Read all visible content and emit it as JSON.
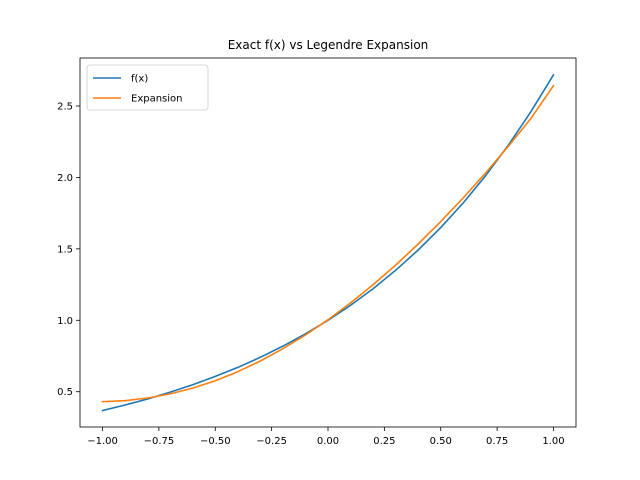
{
  "chart_data": {
    "type": "line",
    "title": "Exact f(x) vs Legendre Expansion",
    "xlabel": "",
    "ylabel": "",
    "xlim": [
      -1.1,
      1.1
    ],
    "ylim": [
      0.253,
      2.836
    ],
    "xticks": [
      -1.0,
      -0.75,
      -0.5,
      -0.25,
      0.0,
      0.25,
      0.5,
      0.75,
      1.0
    ],
    "xtick_labels": [
      "−1.00",
      "−0.75",
      "−0.50",
      "−0.25",
      "0.00",
      "0.25",
      "0.50",
      "0.75",
      "1.00"
    ],
    "yticks": [
      0.5,
      1.0,
      1.5,
      2.0,
      2.5
    ],
    "ytick_labels": [
      "0.5",
      "1.0",
      "1.5",
      "2.0",
      "2.5"
    ],
    "grid": false,
    "legend_position": "upper-left",
    "series": [
      {
        "name": "f(x)",
        "color": "#1f77b4",
        "x": [
          -1.0,
          -0.9,
          -0.8,
          -0.7,
          -0.6,
          -0.5,
          -0.4,
          -0.3,
          -0.2,
          -0.1,
          0.0,
          0.1,
          0.2,
          0.3,
          0.4,
          0.5,
          0.6,
          0.7,
          0.8,
          0.9,
          1.0
        ],
        "y": [
          0.368,
          0.407,
          0.449,
          0.497,
          0.549,
          0.607,
          0.67,
          0.741,
          0.819,
          0.905,
          1.0,
          1.105,
          1.221,
          1.35,
          1.492,
          1.649,
          1.822,
          2.014,
          2.226,
          2.46,
          2.718
        ]
      },
      {
        "name": "Expansion",
        "color": "#ff7f0e",
        "x": [
          -1.0,
          -0.9,
          -0.8,
          -0.7,
          -0.6,
          -0.5,
          -0.4,
          -0.3,
          -0.2,
          -0.1,
          0.0,
          0.1,
          0.2,
          0.3,
          0.4,
          0.5,
          0.6,
          0.7,
          0.8,
          0.9,
          1.0
        ],
        "y": [
          0.43,
          0.437,
          0.456,
          0.485,
          0.525,
          0.577,
          0.64,
          0.715,
          0.801,
          0.897,
          1.004,
          1.122,
          1.249,
          1.386,
          1.534,
          1.691,
          1.857,
          2.033,
          2.218,
          2.413,
          2.642
        ]
      }
    ]
  }
}
